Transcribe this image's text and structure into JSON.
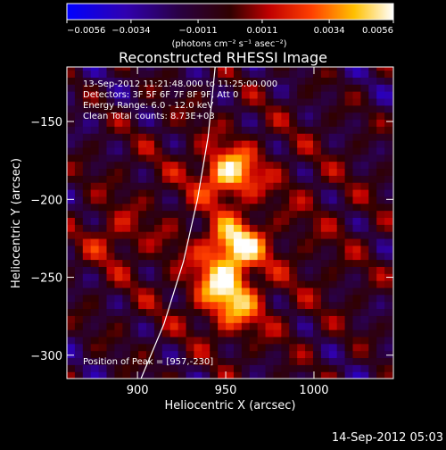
{
  "chart_data": {
    "type": "heatmap",
    "title": "Reconstructed RHESSI Image",
    "xlabel": "Heliocentric X (arcsec)",
    "ylabel": "Heliocentric Y (arcsec)",
    "xlim": [
      860,
      1045
    ],
    "ylim": [
      -315,
      -115
    ],
    "x_ticks": [
      900,
      950,
      1000
    ],
    "y_ticks": [
      -300,
      -250,
      -200,
      -150
    ],
    "grid": false,
    "colorbar": {
      "position": "top",
      "range": [
        -0.0056,
        0.0056
      ],
      "tick_values": [
        -0.0056,
        -0.0034,
        -0.0011,
        0.0011,
        0.0034,
        0.0056
      ],
      "tick_labels": [
        "−0.0056",
        "−0.0034",
        "−0.0011",
        "0.0011",
        "0.0034",
        "0.0056"
      ],
      "units_label": "(photons cm⁻² s⁻¹ asec⁻²)",
      "colormap": [
        "#0000ff",
        "#000000",
        "#ff0000",
        "#ffff00",
        "#ffffff"
      ]
    },
    "annotations": [
      "13-Sep-2012 11:21:48.000 to 11:25:00.000",
      "Detectors: 3F 5F 6F 7F 8F 9F, Att 0",
      "Energy Range: 6.0 - 12.0 keV",
      "Clean     Total counts: 8.73E+03"
    ],
    "peak_text": "Position of Peak = [957,-230]",
    "peak": [
      957,
      -230
    ],
    "sources": [
      {
        "x": 955,
        "y": -230,
        "value": 0.0056
      },
      {
        "x": 952,
        "y": -183,
        "value": 0.0052
      },
      {
        "x": 948,
        "y": -255,
        "value": 0.0042
      },
      {
        "x": 956,
        "y": -272,
        "value": 0.0028
      },
      {
        "x": 885,
        "y": -225,
        "value": 0.0018
      }
    ],
    "limb_curve": [
      [
        902,
        -315
      ],
      [
        915,
        -280
      ],
      [
        926,
        -240
      ],
      [
        934,
        -200
      ],
      [
        940,
        -160
      ],
      [
        944,
        -115
      ]
    ]
  },
  "footer": {
    "timestamp": "14-Sep-2012 05:03"
  }
}
